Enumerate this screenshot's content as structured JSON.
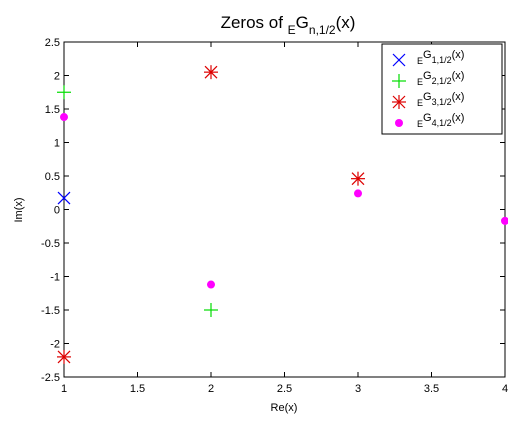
{
  "chart_data": {
    "type": "scatter",
    "title": {
      "pre": "Zeros of ",
      "sub1": "E",
      "main": "G",
      "sub2": "n,1/2",
      "post": "(x)"
    },
    "xlabel": "Re(x)",
    "ylabel": "Im(x)",
    "xlim": [
      1,
      4
    ],
    "ylim": [
      -2.5,
      2.5
    ],
    "xticks": [
      1,
      1.5,
      2,
      2.5,
      3,
      3.5,
      4
    ],
    "yticks": [
      -2.5,
      -2,
      -1.5,
      -1,
      -0.5,
      0,
      0.5,
      1,
      1.5,
      2,
      2.5
    ],
    "grid": false,
    "legend_position": "top-right",
    "series": [
      {
        "name": {
          "pre": "E",
          "main": "G",
          "sub": "1,1/2",
          "post": "(x)"
        },
        "marker": "x",
        "color": "#0000ff",
        "points": [
          [
            1,
            0.17
          ]
        ]
      },
      {
        "name": {
          "pre": "E",
          "main": "G",
          "sub": "2,1/2",
          "post": "(x)"
        },
        "marker": "+",
        "color": "#00dd00",
        "points": [
          [
            1,
            1.75
          ],
          [
            2,
            -1.5
          ]
        ]
      },
      {
        "name": {
          "pre": "E",
          "main": "G",
          "sub": "3,1/2",
          "post": "(x)"
        },
        "marker": "*",
        "color": "#dd0000",
        "points": [
          [
            1,
            -2.2
          ],
          [
            2,
            2.05
          ],
          [
            3,
            0.46
          ]
        ]
      },
      {
        "name": {
          "pre": "E",
          "main": "G",
          "sub": "4,1/2",
          "post": "(x)"
        },
        "marker": "o",
        "color": "#ff00ff",
        "points": [
          [
            1,
            1.38
          ],
          [
            2,
            -1.12
          ],
          [
            3,
            0.24
          ],
          [
            4,
            -0.17
          ]
        ]
      }
    ]
  }
}
